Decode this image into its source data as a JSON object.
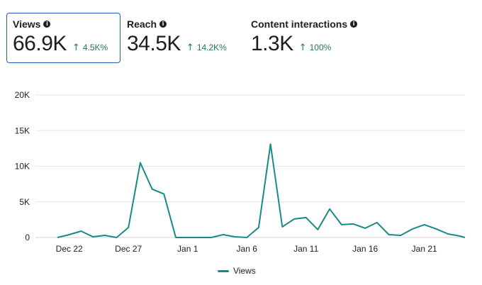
{
  "metrics": [
    {
      "title": "Views",
      "value": "66.9K",
      "change": "4.5K%",
      "selected": true
    },
    {
      "title": "Reach",
      "value": "34.5K",
      "change": "14.2K%",
      "selected": false
    },
    {
      "title": "Content interactions",
      "value": "1.3K",
      "change": "100%",
      "selected": false
    }
  ],
  "info_icon": "info-icon",
  "change_icon": "arrow-up-icon",
  "colors": {
    "series": "#178a88",
    "change_positive": "#1f7a5a",
    "selected_border": "#1f5fb8"
  },
  "chart_data": {
    "type": "line",
    "x": [
      "Dec 21",
      "Dec 22",
      "Dec 23",
      "Dec 24",
      "Dec 25",
      "Dec 26",
      "Dec 27",
      "Dec 28",
      "Dec 29",
      "Dec 30",
      "Dec 31",
      "Jan 1",
      "Jan 2",
      "Jan 3",
      "Jan 4",
      "Jan 5",
      "Jan 6",
      "Jan 7",
      "Jan 8",
      "Jan 9",
      "Jan 10",
      "Jan 11",
      "Jan 12",
      "Jan 13",
      "Jan 14",
      "Jan 15",
      "Jan 16",
      "Jan 17",
      "Jan 18",
      "Jan 19",
      "Jan 20",
      "Jan 21",
      "Jan 22",
      "Jan 23",
      "Jan 24",
      "Jan 25"
    ],
    "series": [
      {
        "name": "Views",
        "values": [
          0,
          400,
          900,
          100,
          300,
          0,
          1400,
          10500,
          6800,
          6100,
          0,
          0,
          0,
          0,
          400,
          100,
          0,
          1400,
          13100,
          1500,
          2600,
          2800,
          1100,
          4000,
          1800,
          1900,
          1300,
          2100,
          400,
          300,
          1200,
          1800,
          1200,
          500,
          200,
          0
        ]
      }
    ],
    "x_tick_labels": [
      "Dec 22",
      "Dec 27",
      "Jan 1",
      "Jan 6",
      "Jan 11",
      "Jan 16",
      "Jan 21"
    ],
    "y_tick_labels": [
      "0",
      "5K",
      "10K",
      "15K",
      "20K"
    ],
    "ylim": [
      0,
      20000
    ],
    "grid": true,
    "legend": "bottom-center"
  }
}
